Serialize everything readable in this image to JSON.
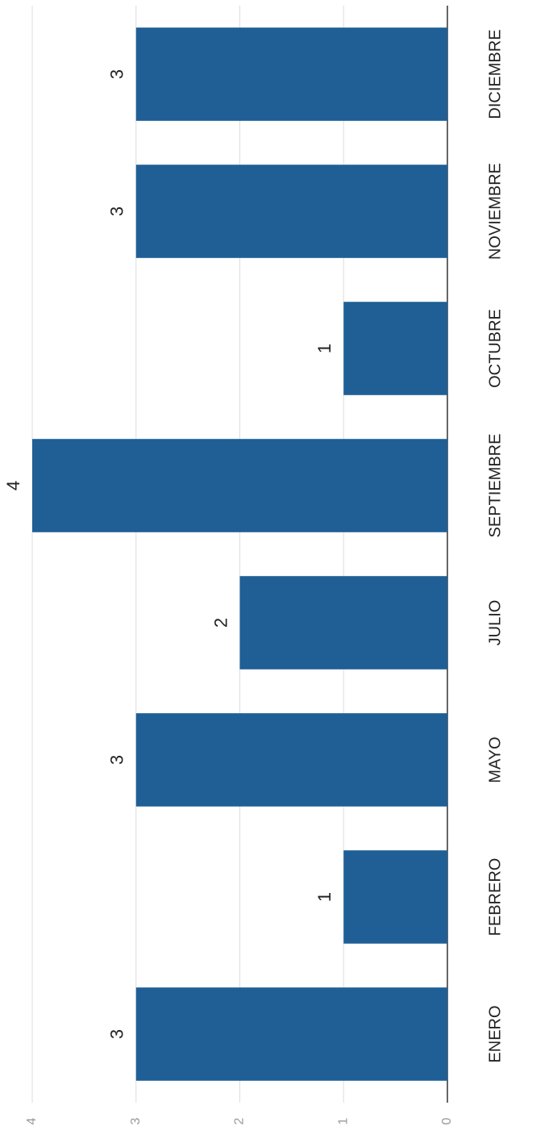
{
  "chart_data": {
    "type": "bar",
    "categories": [
      "ENERO",
      "FEBRERO",
      "MAYO",
      "JULIO",
      "SEPTIEMBRE",
      "OCTUBRE",
      "NOVIEMBRE",
      "DICIEMBRE"
    ],
    "values": [
      3,
      1,
      3,
      2,
      4,
      1,
      3,
      3
    ],
    "color": "#1f5f96",
    "ylim": [
      0,
      4
    ],
    "yticks": [
      0,
      1,
      2,
      3,
      4
    ],
    "grid": true
  }
}
